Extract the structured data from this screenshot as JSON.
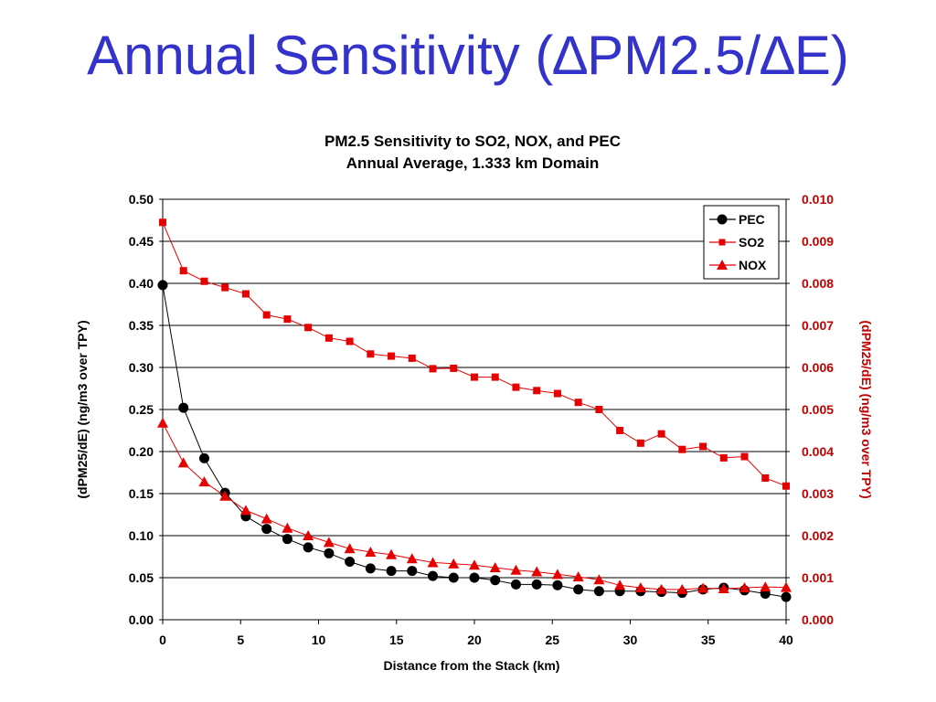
{
  "slide": {
    "title": "Annual Sensitivity (∆PM2.5/∆E)"
  },
  "colors": {
    "title": "#3333cc",
    "pec": "#000000",
    "so2": "#e60000",
    "nox": "#e60000",
    "right_axis": "#c00000"
  },
  "chart_data": {
    "type": "line",
    "title": "PM2.5 Sensitivity to SO2, NOX, and PEC",
    "subtitle": "Annual Average, 1.333 km Domain",
    "xlabel": "Distance from the Stack (km)",
    "ylabel": "(dPM25/dE) (ng/m3 over TPY)",
    "ylabel_right": "(dPM25/dE) (ng/m3 over TPY)",
    "xlim": [
      0,
      40
    ],
    "ylim": [
      0,
      0.5
    ],
    "ylim_right": [
      0,
      0.01
    ],
    "x_ticks": [
      "0",
      "5",
      "10",
      "15",
      "20",
      "25",
      "30",
      "35",
      "40"
    ],
    "y_ticks": [
      "0.00",
      "0.05",
      "0.10",
      "0.15",
      "0.20",
      "0.25",
      "0.30",
      "0.35",
      "0.40",
      "0.45",
      "0.50"
    ],
    "y_ticks_right": [
      "0.000",
      "0.001",
      "0.002",
      "0.003",
      "0.004",
      "0.005",
      "0.006",
      "0.007",
      "0.008",
      "0.009",
      "0.010"
    ],
    "grid": true,
    "legend_position": "top-right",
    "x": [
      0,
      1.333,
      2.667,
      4,
      5.333,
      6.667,
      8,
      9.333,
      10.667,
      12,
      13.333,
      14.667,
      16,
      17.333,
      18.667,
      20,
      21.333,
      22.667,
      24,
      25.333,
      26.667,
      28,
      29.333,
      30.667,
      32,
      33.333,
      34.667,
      36,
      37.333,
      38.667,
      40
    ],
    "series": [
      {
        "name": "PEC",
        "axis": "left",
        "marker": "circle",
        "values": [
          0.398,
          0.252,
          0.192,
          0.151,
          0.123,
          0.108,
          0.096,
          0.086,
          0.079,
          0.069,
          0.061,
          0.058,
          0.058,
          0.052,
          0.05,
          0.05,
          0.047,
          0.042,
          0.042,
          0.041,
          0.036,
          0.034,
          0.034,
          0.034,
          0.033,
          0.032,
          0.036,
          0.038,
          0.035,
          0.031,
          0.027
        ]
      },
      {
        "name": "SO2",
        "axis": "right",
        "marker": "square",
        "values": [
          0.00945,
          0.0083,
          0.00805,
          0.0079,
          0.00775,
          0.00725,
          0.00715,
          0.00695,
          0.0067,
          0.00662,
          0.00632,
          0.00627,
          0.00622,
          0.00597,
          0.00598,
          0.00577,
          0.00577,
          0.00553,
          0.00545,
          0.00538,
          0.00517,
          0.005,
          0.0045,
          0.0042,
          0.00442,
          0.00405,
          0.00412,
          0.00385,
          0.00388,
          0.00337,
          0.00318
        ]
      },
      {
        "name": "NOX",
        "axis": "right",
        "marker": "triangle",
        "values": [
          0.00468,
          0.00373,
          0.00328,
          0.00294,
          0.0026,
          0.0024,
          0.00218,
          0.002,
          0.00184,
          0.00169,
          0.00161,
          0.00155,
          0.00145,
          0.00136,
          0.00133,
          0.0013,
          0.00124,
          0.00118,
          0.00114,
          0.00108,
          0.00102,
          0.00095,
          0.00082,
          0.00076,
          0.00072,
          0.00072,
          0.00075,
          0.00074,
          0.00076,
          0.00078,
          0.00077
        ]
      }
    ]
  }
}
